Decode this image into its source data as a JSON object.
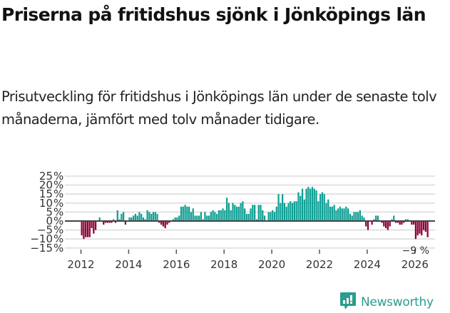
{
  "title": "Priserna på fritidshus sjönk i Jönköpings län",
  "subtitle": "Prisutveckling för fritidshus i Jönköpings län under de senaste tolv månaderna, jämfört med tolv månader tidigare.",
  "brand": {
    "name": "Newsworthy",
    "icon": "bar-chart-speech-bubble-icon",
    "color": "#2a9d8f"
  },
  "colors": {
    "positive": "#0e9f94",
    "negative": "#8c0037",
    "grid": "#dddddd",
    "zero_line": "#444444",
    "text": "#333333"
  },
  "chart_data": {
    "type": "bar",
    "title": "Priserna på fritidshus sjönk i Jönköpings län",
    "subtitle": "Prisutveckling för fritidshus i Jönköpings län under de senaste tolv månaderna, jämfört med tolv månader tidigare.",
    "xlabel": "",
    "ylabel": "",
    "ylim": [
      -15,
      25
    ],
    "yticks": [
      25,
      20,
      15,
      10,
      5,
      0,
      -5,
      -10,
      -15
    ],
    "ytick_labels": [
      "25 %",
      "20 %",
      "15 %",
      "10 %",
      "5 %",
      "0 %",
      "−5 %",
      "−10 %",
      "−15 %"
    ],
    "xticks": [
      "2012",
      "2014",
      "2016",
      "2018",
      "2020",
      "2022",
      "2024",
      "2026"
    ],
    "grid": true,
    "legend": null,
    "annotation": {
      "label": "−9 %",
      "value": -9,
      "position": "last bar"
    },
    "start": "2012-01",
    "frequency": "monthly",
    "values": [
      -8,
      -10,
      -9,
      -9,
      -9,
      -4,
      -7,
      -5,
      0,
      2,
      0,
      -2,
      -1,
      -1,
      -1,
      -1,
      1,
      -1,
      6,
      1,
      4,
      5,
      -2,
      0,
      2,
      2,
      3,
      4,
      3,
      5,
      4,
      2,
      1,
      6,
      5,
      4,
      5,
      5,
      4,
      -1,
      -2,
      -3,
      -4,
      -2,
      -1,
      0,
      1,
      2,
      2,
      3,
      8,
      8,
      9,
      8,
      8,
      5,
      7,
      3,
      3,
      3,
      5,
      1,
      5,
      3,
      3,
      5,
      6,
      5,
      4,
      6,
      6,
      7,
      6,
      13,
      10,
      6,
      10,
      9,
      8,
      8,
      10,
      11,
      7,
      4,
      4,
      7,
      9,
      9,
      1,
      9,
      9,
      6,
      3,
      0,
      5,
      5,
      6,
      5,
      8,
      15,
      10,
      15,
      10,
      8,
      10,
      11,
      10,
      11,
      11,
      16,
      14,
      18,
      12,
      18,
      19,
      18,
      19,
      18,
      17,
      11,
      15,
      16,
      15,
      10,
      12,
      8,
      8,
      9,
      6,
      7,
      8,
      7,
      7,
      8,
      7,
      4,
      3,
      5,
      5,
      5,
      6,
      3,
      2,
      -3,
      -5,
      0,
      -2,
      1,
      3,
      3,
      0,
      -1,
      -3,
      -4,
      -5,
      -3,
      1,
      3,
      -1,
      -1,
      -2,
      -2,
      -1,
      1,
      1,
      0,
      -2,
      -2,
      -10,
      -8,
      -7,
      -8,
      -5,
      -6,
      -9
    ]
  }
}
